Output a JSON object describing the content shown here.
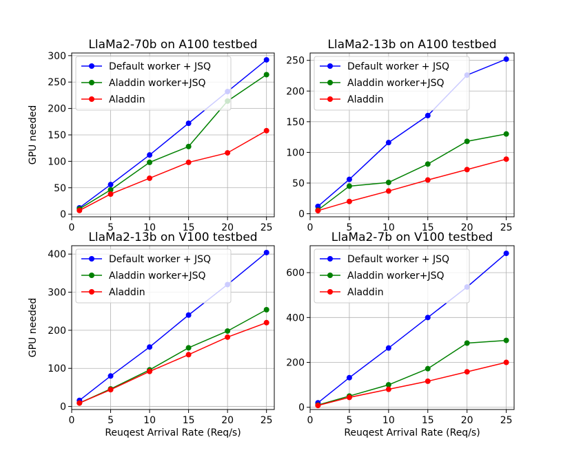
{
  "chart_data": [
    {
      "type": "line",
      "title": "LlaMa2-70b on A100 testbed",
      "xlabel": "",
      "ylabel": "GPU needed",
      "x": [
        1,
        5,
        10,
        15,
        20,
        25
      ],
      "xlim": [
        0,
        26
      ],
      "ylim": [
        -5,
        305
      ],
      "xticks": [
        0,
        5,
        10,
        15,
        20,
        25
      ],
      "yticks": [
        0,
        50,
        100,
        150,
        200,
        250,
        300
      ],
      "grid": true,
      "legend": "upper-left",
      "series": [
        {
          "name": "Default worker + JSQ",
          "color": "#0000ff",
          "values": [
            12,
            56,
            112,
            172,
            232,
            292
          ]
        },
        {
          "name": "Aladdin worker+JSQ",
          "color": "#008000",
          "values": [
            10,
            46,
            98,
            128,
            214,
            264
          ]
        },
        {
          "name": "Aladdin",
          "color": "#ff0000",
          "values": [
            7,
            38,
            68,
            98,
            116,
            158
          ]
        }
      ]
    },
    {
      "type": "line",
      "title": "LlaMa2-13b on A100 testbed",
      "xlabel": "",
      "ylabel": "",
      "x": [
        1,
        5,
        10,
        15,
        20,
        25
      ],
      "xlim": [
        0,
        26
      ],
      "ylim": [
        -5,
        262
      ],
      "xticks": [
        0,
        5,
        10,
        15,
        20,
        25
      ],
      "yticks": [
        0,
        50,
        100,
        150,
        200,
        250
      ],
      "grid": true,
      "legend": "upper-left",
      "series": [
        {
          "name": "Default worker + JSQ",
          "color": "#0000ff",
          "values": [
            12,
            56,
            116,
            160,
            226,
            252
          ]
        },
        {
          "name": "Aladdin worker+JSQ",
          "color": "#008000",
          "values": [
            6,
            45,
            51,
            81,
            118,
            130
          ]
        },
        {
          "name": "Aladdin",
          "color": "#ff0000",
          "values": [
            5,
            20,
            37,
            55,
            72,
            89
          ]
        }
      ]
    },
    {
      "type": "line",
      "title": "LlaMa2-13b on V100 testbed",
      "xlabel": "Reuqest Arrival Rate (Req/s)",
      "ylabel": "GPU needed",
      "x": [
        1,
        5,
        10,
        15,
        20,
        25
      ],
      "xlim": [
        0,
        26
      ],
      "ylim": [
        -8,
        422
      ],
      "xticks": [
        0,
        5,
        10,
        15,
        20,
        25
      ],
      "yticks": [
        0,
        100,
        200,
        300,
        400
      ],
      "grid": true,
      "legend": "upper-left",
      "series": [
        {
          "name": "Default worker + JSQ",
          "color": "#0000ff",
          "values": [
            16,
            80,
            156,
            240,
            320,
            404
          ]
        },
        {
          "name": "Aladdin worker+JSQ",
          "color": "#008000",
          "values": [
            9,
            46,
            96,
            154,
            198,
            254
          ]
        },
        {
          "name": "Aladdin",
          "color": "#ff0000",
          "values": [
            9,
            44,
            92,
            136,
            182,
            220
          ]
        }
      ]
    },
    {
      "type": "line",
      "title": "LlaMa2-7b on V100 testbed",
      "xlabel": "Reuqest Arrival Rate (Req/s)",
      "ylabel": "",
      "x": [
        1,
        5,
        10,
        15,
        20,
        25
      ],
      "xlim": [
        0,
        26
      ],
      "ylim": [
        -10,
        720
      ],
      "xticks": [
        0,
        5,
        10,
        15,
        20,
        25
      ],
      "yticks": [
        0,
        200,
        400,
        600
      ],
      "grid": true,
      "legend": "upper-left",
      "series": [
        {
          "name": "Default worker + JSQ",
          "color": "#0000ff",
          "values": [
            20,
            132,
            264,
            400,
            536,
            686
          ]
        },
        {
          "name": "Aladdin worker+JSQ",
          "color": "#008000",
          "values": [
            10,
            50,
            100,
            172,
            286,
            298
          ]
        },
        {
          "name": "Aladdin",
          "color": "#ff0000",
          "values": [
            8,
            44,
            80,
            116,
            158,
            200
          ]
        }
      ]
    }
  ]
}
